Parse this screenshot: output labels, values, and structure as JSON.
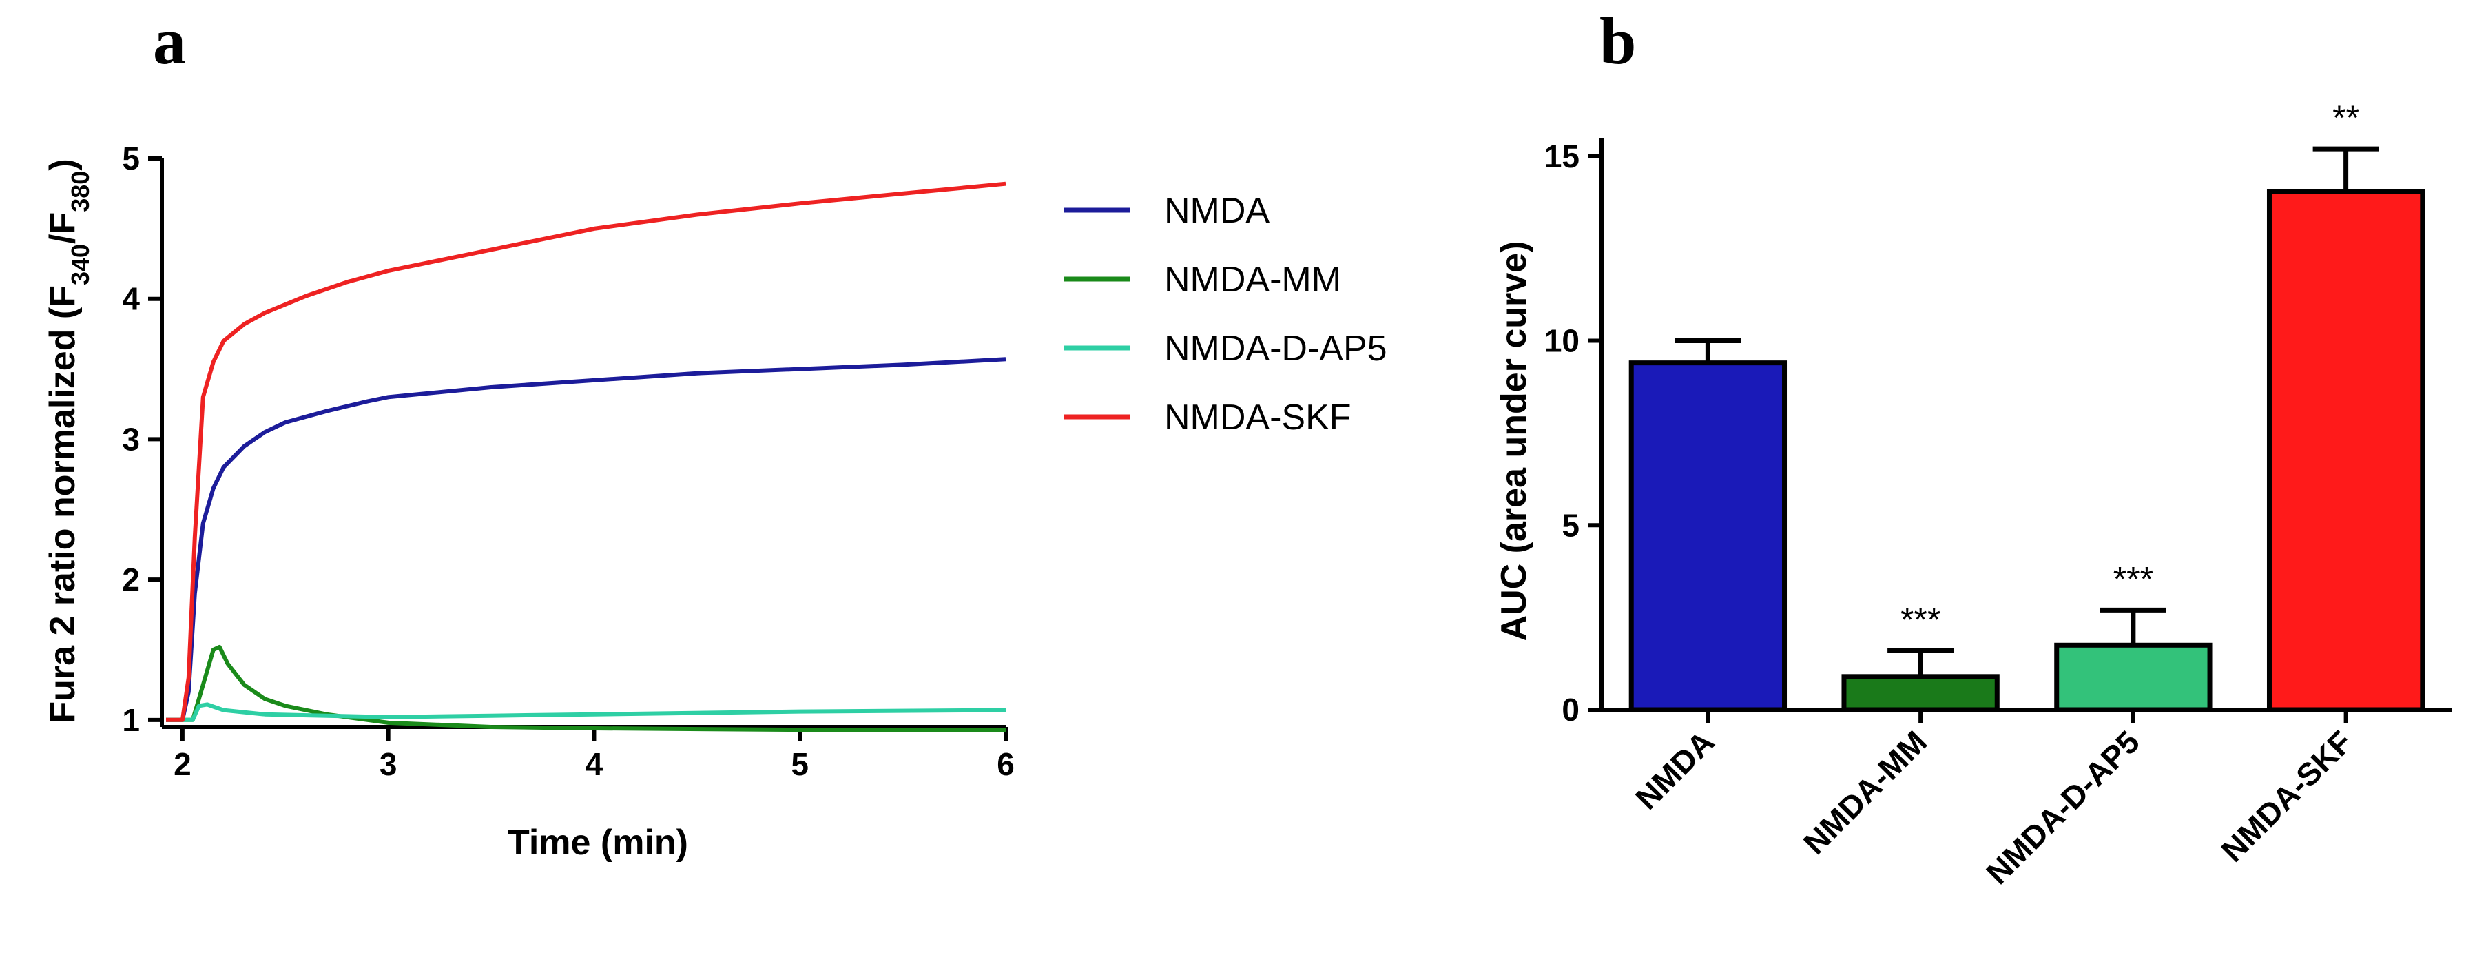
{
  "panels": {
    "a": {
      "letter": "a",
      "ylabel_main": "Fura 2 ratio normalized (F",
      "ylabel_sub1": "340",
      "ylabel_mid": "/F",
      "ylabel_sub2": "380",
      "ylabel_end": ")",
      "xlabel": "Time (min)"
    },
    "b": {
      "letter": "b",
      "ylabel": "AUC (area under curve)"
    }
  },
  "chart_data": [
    {
      "type": "line",
      "xlabel": "Time (min)",
      "ylabel": "Fura 2 ratio normalized (F340/F380)",
      "xlim": [
        1.9,
        6
      ],
      "ylim": [
        0.95,
        5
      ],
      "xticks": [
        2,
        3,
        4,
        5,
        6
      ],
      "yticks": [
        1,
        2,
        3,
        4,
        5
      ],
      "legend_position": "right",
      "series": [
        {
          "name": "NMDA",
          "color": "#1c1c9a",
          "points": [
            [
              1.92,
              1.0
            ],
            [
              2.0,
              1.0
            ],
            [
              2.03,
              1.2
            ],
            [
              2.06,
              1.9
            ],
            [
              2.1,
              2.4
            ],
            [
              2.15,
              2.65
            ],
            [
              2.2,
              2.8
            ],
            [
              2.3,
              2.95
            ],
            [
              2.4,
              3.05
            ],
            [
              2.5,
              3.12
            ],
            [
              2.7,
              3.2
            ],
            [
              2.9,
              3.27
            ],
            [
              3.0,
              3.3
            ],
            [
              3.5,
              3.37
            ],
            [
              4.0,
              3.42
            ],
            [
              4.5,
              3.47
            ],
            [
              5.0,
              3.5
            ],
            [
              5.5,
              3.53
            ],
            [
              6.0,
              3.57
            ]
          ]
        },
        {
          "name": "NMDA-MM",
          "color": "#1a8a1a",
          "points": [
            [
              1.92,
              1.0
            ],
            [
              2.05,
              1.0
            ],
            [
              2.1,
              1.25
            ],
            [
              2.15,
              1.5
            ],
            [
              2.18,
              1.52
            ],
            [
              2.22,
              1.4
            ],
            [
              2.3,
              1.25
            ],
            [
              2.4,
              1.15
            ],
            [
              2.5,
              1.1
            ],
            [
              2.7,
              1.04
            ],
            [
              3.0,
              0.98
            ],
            [
              3.5,
              0.95
            ],
            [
              4.0,
              0.94
            ],
            [
              5.0,
              0.93
            ],
            [
              6.0,
              0.93
            ]
          ]
        },
        {
          "name": "NMDA-D-AP5",
          "color": "#2ecfa4",
          "points": [
            [
              1.92,
              1.0
            ],
            [
              2.05,
              1.0
            ],
            [
              2.08,
              1.1
            ],
            [
              2.12,
              1.11
            ],
            [
              2.2,
              1.07
            ],
            [
              2.4,
              1.04
            ],
            [
              2.7,
              1.03
            ],
            [
              3.0,
              1.02
            ],
            [
              3.5,
              1.03
            ],
            [
              4.0,
              1.04
            ],
            [
              5.0,
              1.06
            ],
            [
              6.0,
              1.07
            ]
          ]
        },
        {
          "name": "NMDA-SKF",
          "color": "#ee2222",
          "points": [
            [
              1.92,
              1.0
            ],
            [
              2.0,
              1.0
            ],
            [
              2.03,
              1.3
            ],
            [
              2.06,
              2.3
            ],
            [
              2.1,
              3.3
            ],
            [
              2.15,
              3.55
            ],
            [
              2.2,
              3.7
            ],
            [
              2.3,
              3.82
            ],
            [
              2.4,
              3.9
            ],
            [
              2.6,
              4.02
            ],
            [
              2.8,
              4.12
            ],
            [
              3.0,
              4.2
            ],
            [
              3.5,
              4.35
            ],
            [
              4.0,
              4.5
            ],
            [
              4.5,
              4.6
            ],
            [
              5.0,
              4.68
            ],
            [
              5.5,
              4.75
            ],
            [
              6.0,
              4.82
            ]
          ]
        }
      ]
    },
    {
      "type": "bar",
      "ylabel": "AUC (area under curve)",
      "ylim": [
        0,
        15.5
      ],
      "yticks": [
        0,
        5,
        10,
        15
      ],
      "categories": [
        "NMDA",
        "NMDA-MM",
        "NMDA-D-AP5",
        "NMDA-SKF"
      ],
      "values": [
        9.4,
        0.9,
        1.75,
        14.05
      ],
      "errors": [
        0.6,
        0.7,
        0.95,
        1.15
      ],
      "colors": [
        "#1a1ab8",
        "#1a7a1a",
        "#33c27a",
        "#ff1a1a"
      ],
      "significance": [
        "",
        "***",
        "***",
        "**"
      ]
    }
  ]
}
